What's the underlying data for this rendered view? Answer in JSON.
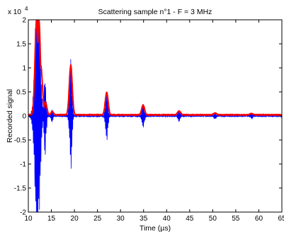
{
  "chart_data": {
    "type": "line",
    "title": "Scattering sample n°1 - F = 3 MHz",
    "xlabel": "Time (µs)",
    "ylabel": "Recorded signal",
    "exponent_base": "x 10",
    "exponent_power": "4",
    "xlim": [
      10,
      65
    ],
    "ylim": [
      -2,
      2
    ],
    "xticks": [
      10,
      15,
      20,
      25,
      30,
      35,
      40,
      45,
      50,
      55,
      60,
      65
    ],
    "yticks": [
      -2,
      -1.5,
      -1,
      -0.5,
      0,
      0.5,
      1,
      1.5,
      2
    ],
    "ytick_labels": [
      "-2",
      "-1.5",
      "-1",
      "-0.5",
      "0",
      "0.5",
      "1",
      "1.5",
      "2"
    ],
    "grid": false,
    "series": [
      {
        "style": "signal",
        "color": "#0000ff",
        "baseline_noise": 0.02,
        "bursts": [
          {
            "center": 12.0,
            "width": 0.75,
            "amplitude": 2.4,
            "period": 0.333
          },
          {
            "center": 13.6,
            "width": 0.35,
            "amplitude": 0.8,
            "period": 0.333
          },
          {
            "center": 15.1,
            "width": 0.3,
            "amplitude": 0.12,
            "period": 0.333
          },
          {
            "center": 19.2,
            "width": 0.35,
            "amplitude": 1.05,
            "period": 0.333
          },
          {
            "center": 27.0,
            "width": 0.35,
            "amplitude": 0.52,
            "period": 0.333
          },
          {
            "center": 34.9,
            "width": 0.35,
            "amplitude": 0.23,
            "period": 0.333
          },
          {
            "center": 42.7,
            "width": 0.35,
            "amplitude": 0.1,
            "period": 0.333
          },
          {
            "center": 50.5,
            "width": 0.35,
            "amplitude": 0.06,
            "period": 0.333
          },
          {
            "center": 58.4,
            "width": 0.35,
            "amplitude": 0.05,
            "period": 0.333
          }
        ]
      },
      {
        "style": "envelope",
        "color": "#ff0000",
        "baseline": 0.02,
        "peaks": [
          {
            "x": 11.8,
            "y": 2.0,
            "width": 0.5
          },
          {
            "x": 12.3,
            "y": 2.0,
            "width": 0.45
          },
          {
            "x": 12.7,
            "y": 1.05,
            "width": 0.5
          },
          {
            "x": 13.7,
            "y": 0.28,
            "width": 0.45
          },
          {
            "x": 15.2,
            "y": 0.09,
            "width": 0.4
          },
          {
            "x": 19.2,
            "y": 1.05,
            "width": 0.45
          },
          {
            "x": 27.0,
            "y": 0.48,
            "width": 0.45
          },
          {
            "x": 34.9,
            "y": 0.22,
            "width": 0.45
          },
          {
            "x": 42.7,
            "y": 0.1,
            "width": 0.5
          },
          {
            "x": 50.5,
            "y": 0.06,
            "width": 0.5
          },
          {
            "x": 58.4,
            "y": 0.05,
            "width": 0.5
          }
        ]
      }
    ]
  }
}
